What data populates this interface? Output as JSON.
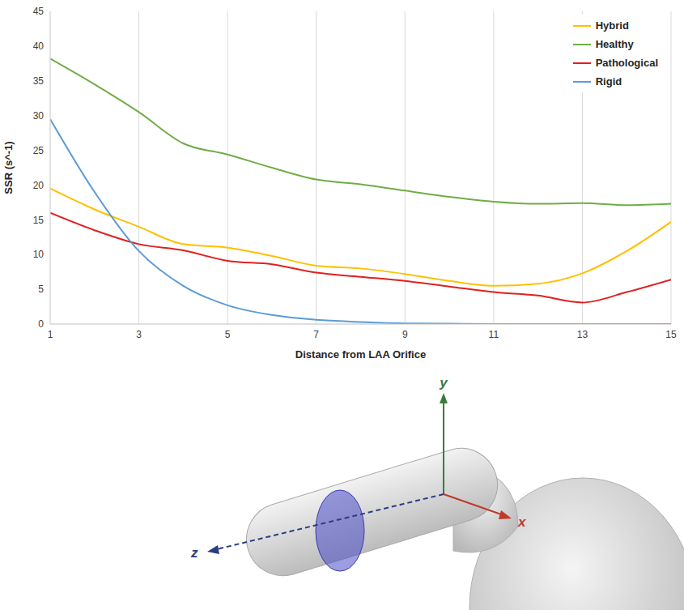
{
  "chart_data": {
    "type": "line",
    "x_label": "Distance from LAA Orifice",
    "y_label": "SSR (s^-1)",
    "x": [
      1,
      2,
      3,
      4,
      5,
      6,
      7,
      8,
      9,
      10,
      11,
      12,
      13,
      14,
      15
    ],
    "xlim": [
      1,
      15
    ],
    "xticks": [
      1,
      3,
      5,
      7,
      9,
      11,
      13,
      15
    ],
    "ylim": [
      0,
      45
    ],
    "yticks": [
      0,
      5,
      10,
      15,
      20,
      25,
      30,
      35,
      40,
      45
    ],
    "grid": true,
    "legend": "upper right",
    "marker": "none",
    "line_style": "smooth",
    "series": [
      {
        "name": "Hybrid",
        "color": "#FFC000",
        "values": [
          19.5,
          16.5,
          14,
          11.5,
          11,
          9.8,
          8.4,
          8,
          7.2,
          6.2,
          5.5,
          5.8,
          7.3,
          10.5,
          14.7
        ]
      },
      {
        "name": "Healthy",
        "color": "#70AD47",
        "values": [
          38.2,
          34.5,
          30.5,
          26,
          24.4,
          22.5,
          20.8,
          20.1,
          19.2,
          18.3,
          17.6,
          17.3,
          17.4,
          17.1,
          17.3
        ]
      },
      {
        "name": "Pathological",
        "color": "#E02020",
        "values": [
          16,
          13.5,
          11.5,
          10.6,
          9.1,
          8.6,
          7.4,
          6.8,
          6.2,
          5.4,
          4.6,
          4.1,
          3.1,
          4.6,
          6.4
        ]
      },
      {
        "name": "Rigid",
        "color": "#5B9BD5",
        "values": [
          29.5,
          19,
          10.5,
          5.5,
          2.7,
          1.3,
          0.6,
          0.3,
          0.1,
          0.05,
          0,
          0,
          0,
          0,
          0
        ]
      }
    ]
  },
  "diagram": {
    "axes": {
      "y": "y",
      "x": "x",
      "z": "z"
    }
  }
}
